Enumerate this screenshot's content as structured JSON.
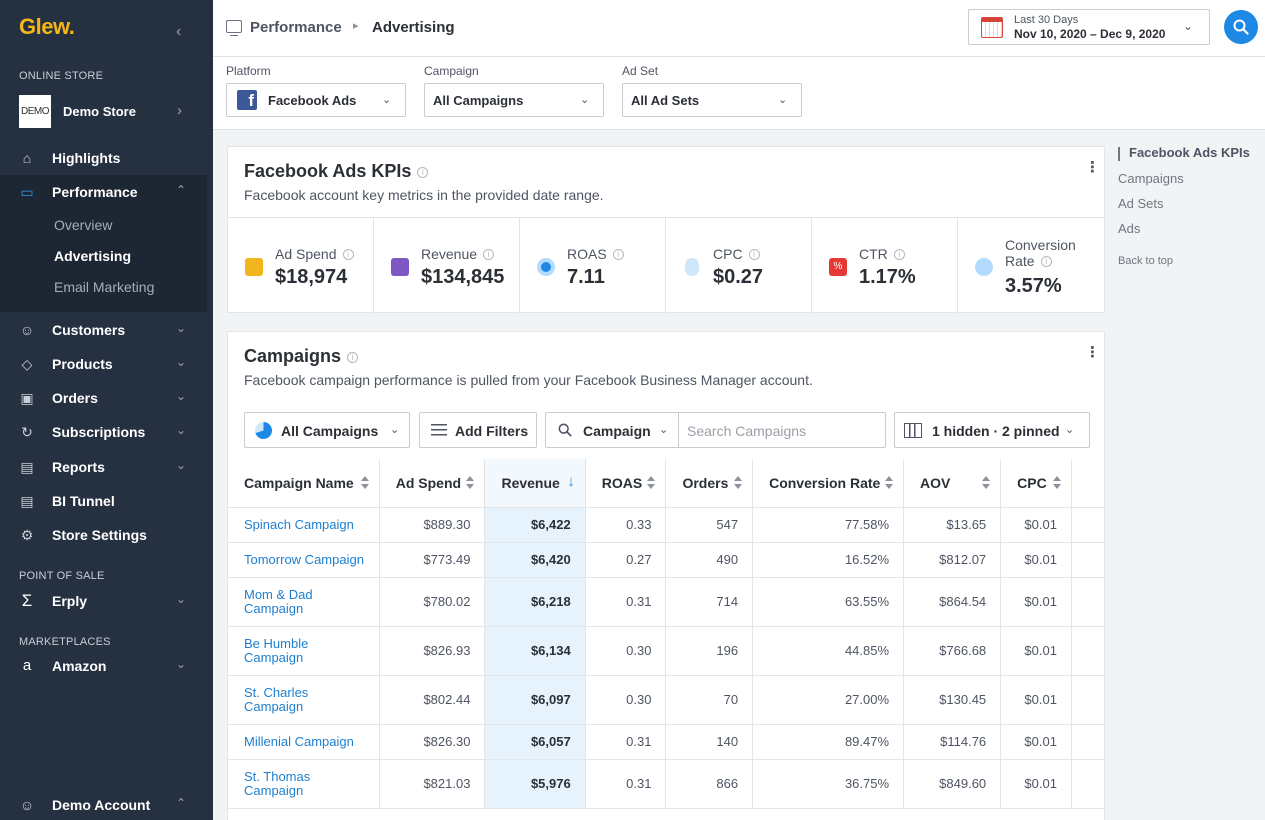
{
  "sidebar": {
    "logo": "Glew.",
    "sections": {
      "online_store": "ONLINE STORE",
      "point_of_sale": "POINT OF SALE",
      "marketplaces": "MARKETPLACES"
    },
    "store": {
      "logo_text": "DEMO",
      "name": "Demo Store"
    },
    "nav": {
      "highlights": "Highlights",
      "performance": "Performance",
      "performance_sub": [
        "Overview",
        "Advertising",
        "Email Marketing"
      ],
      "customers": "Customers",
      "products": "Products",
      "orders": "Orders",
      "subscriptions": "Subscriptions",
      "reports": "Reports",
      "bi_tunnel": "BI Tunnel",
      "store_settings": "Store Settings",
      "erply": "Erply",
      "amazon": "Amazon"
    },
    "account": "Demo Account"
  },
  "header": {
    "breadcrumb": [
      "Performance",
      "Advertising"
    ],
    "date_label": "Last 30 Days",
    "date_range": "Nov 10, 2020 – Dec 9, 2020"
  },
  "filters": {
    "platform": {
      "label": "Platform",
      "value": "Facebook Ads"
    },
    "campaign": {
      "label": "Campaign",
      "value": "All Campaigns"
    },
    "ad_set": {
      "label": "Ad Set",
      "value": "All Ad Sets"
    }
  },
  "toc": {
    "items": [
      "Facebook Ads KPIs",
      "Campaigns",
      "Ad Sets",
      "Ads"
    ],
    "back": "Back to top"
  },
  "kpi_card": {
    "title": "Facebook Ads KPIs",
    "subtitle": "Facebook account key metrics in the provided date range.",
    "kpis": [
      {
        "label": "Ad Spend",
        "value": "$18,974",
        "icon": "coins-icon",
        "color": "#f2b51d"
      },
      {
        "label": "Revenue",
        "value": "$134,845",
        "icon": "register-icon",
        "color": "#7e57c2"
      },
      {
        "label": "ROAS",
        "value": "7.11",
        "icon": "target-icon",
        "color": "#1e88e5"
      },
      {
        "label": "CPC",
        "value": "$0.27",
        "icon": "mouse-icon",
        "color": "#90caf9"
      },
      {
        "label": "CTR",
        "value": "1.17%",
        "icon": "percent-icon",
        "color": "#e53935"
      },
      {
        "label": "Conversion Rate",
        "value": "3.57%",
        "icon": "conversion-icon",
        "color": "#64b5f6"
      }
    ]
  },
  "campaigns_card": {
    "title": "Campaigns",
    "subtitle": "Facebook campaign performance is pulled from your Facebook Business Manager account.",
    "toolbar": {
      "segment": "All Campaigns",
      "add_filters": "Add Filters",
      "search_field": "Campaign",
      "search_placeholder": "Search Campaigns",
      "columns": "1 hidden · 2 pinned"
    },
    "columns": [
      "Campaign Name",
      "Ad Spend",
      "Revenue",
      "ROAS",
      "Orders",
      "Conversion Rate",
      "AOV",
      "CPC"
    ],
    "rows": [
      [
        "Spinach Campaign",
        "$889.30",
        "$6,422",
        "0.33",
        "547",
        "77.58%",
        "$13.65",
        "$0.01"
      ],
      [
        "Tomorrow Campaign",
        "$773.49",
        "$6,420",
        "0.27",
        "490",
        "16.52%",
        "$812.07",
        "$0.01"
      ],
      [
        "Mom & Dad Campaign",
        "$780.02",
        "$6,218",
        "0.31",
        "714",
        "63.55%",
        "$864.54",
        "$0.01"
      ],
      [
        "Be Humble Campaign",
        "$826.93",
        "$6,134",
        "0.30",
        "196",
        "44.85%",
        "$766.68",
        "$0.01"
      ],
      [
        "St. Charles Campaign",
        "$802.44",
        "$6,097",
        "0.30",
        "70",
        "27.00%",
        "$130.45",
        "$0.01"
      ],
      [
        "Millenial Campaign",
        "$826.30",
        "$6,057",
        "0.31",
        "140",
        "89.47%",
        "$114.76",
        "$0.01"
      ],
      [
        "St. Thomas Campaign",
        "$821.03",
        "$5,976",
        "0.31",
        "866",
        "36.75%",
        "$849.60",
        "$0.01"
      ]
    ]
  }
}
